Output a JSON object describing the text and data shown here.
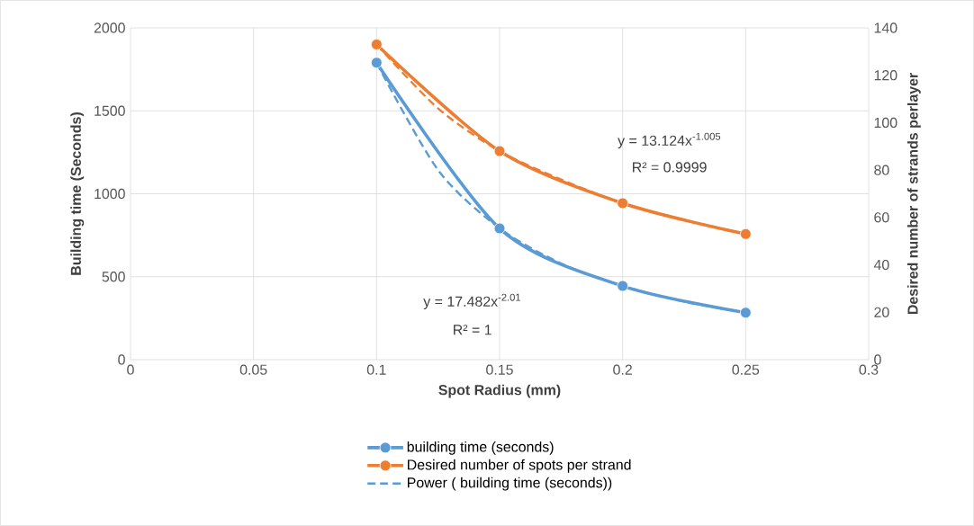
{
  "chart_data": {
    "type": "line",
    "xlabel": "Spot Radius (mm)",
    "ylabel": "Building time (Seconds)",
    "y2label": "Desired number of strands perlayer",
    "series": [
      {
        "name": "building time (seconds)",
        "color": "#5b9bd5",
        "x": [
          0.1,
          0.15,
          0.2,
          0.25
        ],
        "values": [
          1790,
          791,
          444,
          283
        ],
        "marker": "circle",
        "line_style": "solid"
      },
      {
        "name": "Desired number of spots per strand",
        "color": "#ed7d31",
        "x": [
          0.1,
          0.15,
          0.2,
          0.25
        ],
        "values": [
          133,
          88,
          66,
          53
        ],
        "axis": "y2",
        "marker": "circle",
        "line_style": "solid"
      },
      {
        "name": "Power ( building time (seconds))",
        "color": "#5b9bd5",
        "x": [
          0.1,
          0.125,
          0.15,
          0.175,
          0.2,
          0.225,
          0.25
        ],
        "values": [
          1789,
          1143,
          792,
          580,
          444,
          350,
          284
        ],
        "marker": "none",
        "line_style": "dashed"
      },
      {
        "color": "#ed7d31",
        "x": [
          0.1,
          0.125,
          0.15,
          0.175,
          0.2,
          0.225,
          0.25
        ],
        "values": [
          133,
          106,
          88,
          76,
          66,
          59,
          53
        ],
        "axis": "y2",
        "marker": "none",
        "line_style": "dashed"
      }
    ],
    "xlim": [
      0,
      0.3
    ],
    "xticks": [
      0,
      0.05,
      0.1,
      0.15,
      0.2,
      0.25,
      0.3
    ],
    "ylim": [
      0,
      2000
    ],
    "yticks": [
      0,
      500,
      1000,
      1500,
      2000
    ],
    "y2lim": [
      0,
      140
    ],
    "y2ticks": [
      0,
      20,
      40,
      60,
      80,
      100,
      120,
      140
    ],
    "grid": true,
    "legend": "bottom",
    "annotations": [
      "y = 13.124x$^{-1.005}$",
      "R² = 0.9999",
      "y = 17.482x$^{-2.01}$",
      "R² = 1"
    ]
  }
}
